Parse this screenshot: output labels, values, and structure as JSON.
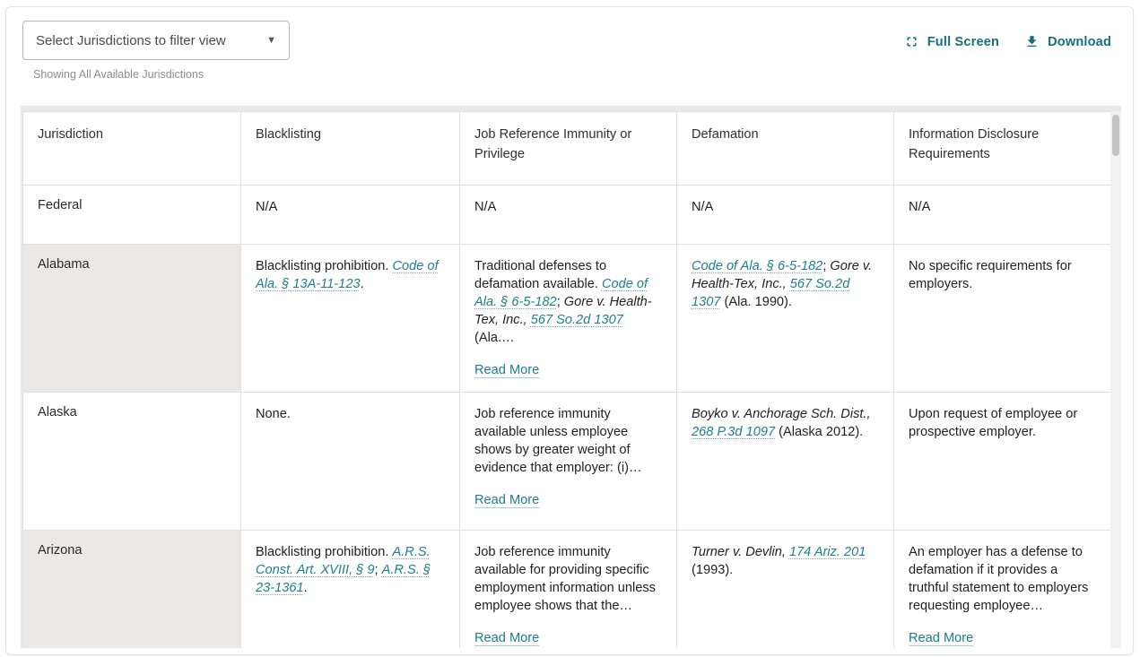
{
  "toolbar": {
    "filter_button": "Select Jurisdictions to filter view",
    "caption": "Showing All Available Jurisdictions",
    "fullscreen_label": "Full Screen",
    "download_label": "Download"
  },
  "colors": {
    "accent_teal": "#156d83",
    "link_teal": "#1e7d93",
    "shaded_row_bg": "#ebe9e6",
    "border": "#e0e0e0"
  },
  "icons": {
    "chevron": "chevron-down-icon",
    "fullscreen": "fullscreen-icon",
    "download": "download-icon"
  },
  "table": {
    "read_more_label": "Read More",
    "columns": [
      "Jurisdiction",
      "Blacklisting",
      "Job Reference Immunity or Privilege",
      "Defamation",
      "Information Disclosure Requirements"
    ],
    "rows": [
      {
        "jurisdiction": "Federal",
        "shaded": false,
        "short": true,
        "cells": [
          {
            "segments": [
              {
                "text": "N/A",
                "style": "plain"
              }
            ],
            "read_more": false
          },
          {
            "segments": [
              {
                "text": "N/A",
                "style": "plain"
              }
            ],
            "read_more": false
          },
          {
            "segments": [
              {
                "text": "N/A",
                "style": "plain"
              }
            ],
            "read_more": false
          },
          {
            "segments": [
              {
                "text": "N/A",
                "style": "plain"
              }
            ],
            "read_more": false
          }
        ]
      },
      {
        "jurisdiction": "Alabama",
        "shaded": true,
        "short": false,
        "cells": [
          {
            "segments": [
              {
                "text": "Blacklisting prohibition. ",
                "style": "plain"
              },
              {
                "text": "Code of Ala. § 13A-11-123",
                "style": "link"
              },
              {
                "text": ".",
                "style": "plain"
              }
            ],
            "read_more": false
          },
          {
            "segments": [
              {
                "text": "Traditional defenses to defamation available. ",
                "style": "plain"
              },
              {
                "text": "Code of Ala. § 6-5-182",
                "style": "link"
              },
              {
                "text": "; ",
                "style": "plain"
              },
              {
                "text": "Gore v. Health-Tex, Inc.,",
                "style": "case"
              },
              {
                "text": " ",
                "style": "plain"
              },
              {
                "text": "567 So.2d 1307",
                "style": "link"
              },
              {
                "text": " (Ala.…",
                "style": "plain"
              }
            ],
            "read_more": true
          },
          {
            "segments": [
              {
                "text": "Code of Ala. § 6-5-182",
                "style": "link"
              },
              {
                "text": "; ",
                "style": "plain"
              },
              {
                "text": "Gore v. Health-Tex, Inc.,",
                "style": "case"
              },
              {
                "text": " ",
                "style": "plain"
              },
              {
                "text": "567 So.2d 1307",
                "style": "link"
              },
              {
                "text": " (Ala. 1990).",
                "style": "plain"
              }
            ],
            "read_more": false
          },
          {
            "segments": [
              {
                "text": "No specific requirements for employers.",
                "style": "plain"
              }
            ],
            "read_more": false
          }
        ]
      },
      {
        "jurisdiction": "Alaska",
        "shaded": false,
        "short": false,
        "cells": [
          {
            "segments": [
              {
                "text": "None.",
                "style": "plain"
              }
            ],
            "read_more": false
          },
          {
            "segments": [
              {
                "text": "Job reference immunity available unless employee shows by greater weight of evidence that employer: (i)…",
                "style": "plain"
              }
            ],
            "read_more": true
          },
          {
            "segments": [
              {
                "text": "Boyko v. Anchorage Sch. Dist.,",
                "style": "case"
              },
              {
                "text": " ",
                "style": "plain"
              },
              {
                "text": "268 P.3d 1097",
                "style": "link"
              },
              {
                "text": " (Alaska 2012).",
                "style": "plain"
              }
            ],
            "read_more": false
          },
          {
            "segments": [
              {
                "text": "Upon request of employee or prospective employer.",
                "style": "plain"
              }
            ],
            "read_more": false
          }
        ]
      },
      {
        "jurisdiction": "Arizona",
        "shaded": true,
        "short": false,
        "cells": [
          {
            "segments": [
              {
                "text": "Blacklisting prohibition. ",
                "style": "plain"
              },
              {
                "text": "A.R.S. Const. Art. XVIII, § 9",
                "style": "link"
              },
              {
                "text": "; ",
                "style": "plain"
              },
              {
                "text": "A.R.S. § 23-1361",
                "style": "link"
              },
              {
                "text": ".",
                "style": "plain"
              }
            ],
            "read_more": false
          },
          {
            "segments": [
              {
                "text": "Job reference immunity available for providing specific employment information unless employee shows that the…",
                "style": "plain"
              }
            ],
            "read_more": true
          },
          {
            "segments": [
              {
                "text": "Turner v. Devlin,",
                "style": "case"
              },
              {
                "text": " ",
                "style": "plain"
              },
              {
                "text": "174 Ariz. 201",
                "style": "link"
              },
              {
                "text": " (1993).",
                "style": "plain"
              }
            ],
            "read_more": false
          },
          {
            "segments": [
              {
                "text": "An employer has a defense to defamation if it provides a truthful statement to employers requesting employee…",
                "style": "plain"
              }
            ],
            "read_more": true
          }
        ]
      }
    ]
  }
}
